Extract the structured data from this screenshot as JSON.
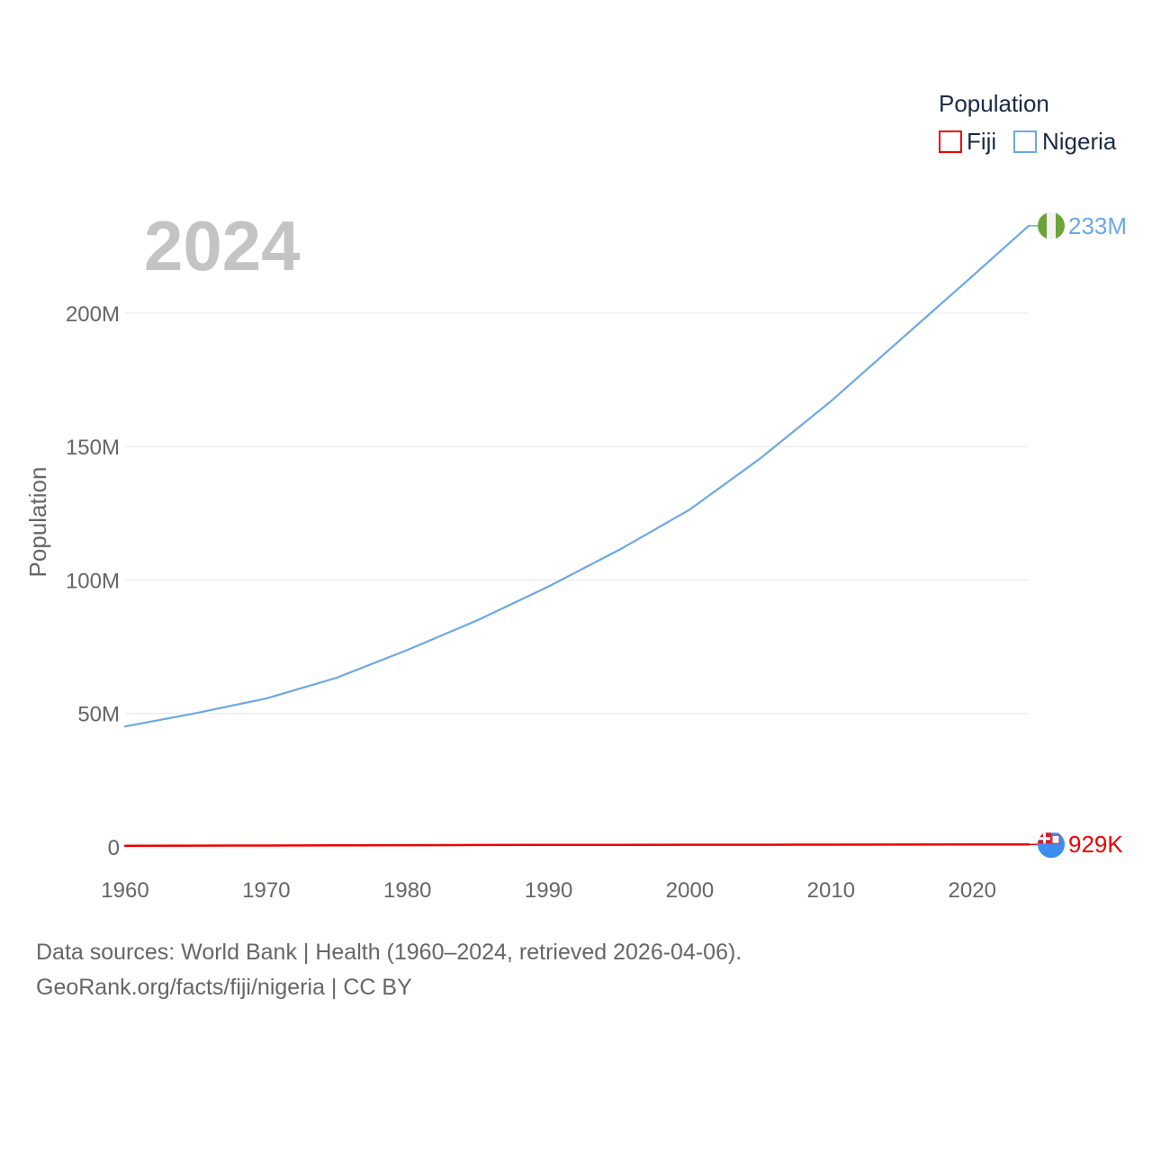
{
  "chart_data": {
    "type": "line",
    "year_label": "2024",
    "ylabel": "Population",
    "xlabel": "",
    "xlim": [
      1960,
      2024
    ],
    "ylim": [
      0,
      233000000
    ],
    "x_ticks": [
      1960,
      1970,
      1980,
      1990,
      2000,
      2010,
      2020
    ],
    "x_tick_labels": [
      "1960",
      "1970",
      "1980",
      "1990",
      "2000",
      "2010",
      "2020"
    ],
    "y_ticks": [
      0,
      50000000,
      100000000,
      150000000,
      200000000
    ],
    "y_tick_labels": [
      "0",
      "50M",
      "100M",
      "150M",
      "200M"
    ],
    "legend": {
      "title": "Population",
      "items": [
        {
          "name": "Fiji",
          "color": "#ee0000"
        },
        {
          "name": "Nigeria",
          "color": "#6ca8e6"
        }
      ]
    },
    "x": [
      1960,
      1965,
      1970,
      1975,
      1980,
      1985,
      1990,
      1995,
      2000,
      2005,
      2010,
      2015,
      2020,
      2024
    ],
    "series": [
      {
        "name": "Nigeria",
        "color": "#6ca8e6",
        "end_label": "233M",
        "flag_icon": "nigeria-flag-icon",
        "values": [
          45100000,
          50100000,
          55600000,
          63400000,
          73800000,
          85000000,
          97600000,
          111300000,
          126400000,
          145600000,
          167000000,
          190400000,
          213800000,
          232700000
        ]
      },
      {
        "name": "Fiji",
        "color": "#ee0000",
        "end_label": "929K",
        "flag_icon": "fiji-flag-icon",
        "values": [
          393000,
          476000,
          521000,
          577000,
          634000,
          698000,
          729000,
          778000,
          812000,
          821000,
          859000,
          869000,
          901000,
          929000
        ]
      }
    ]
  },
  "footer": {
    "line1": "Data sources: World Bank | Health (1960–2024, retrieved 2026-04-06).",
    "line2": "GeoRank.org/facts/fiji/nigeria | CC BY"
  }
}
